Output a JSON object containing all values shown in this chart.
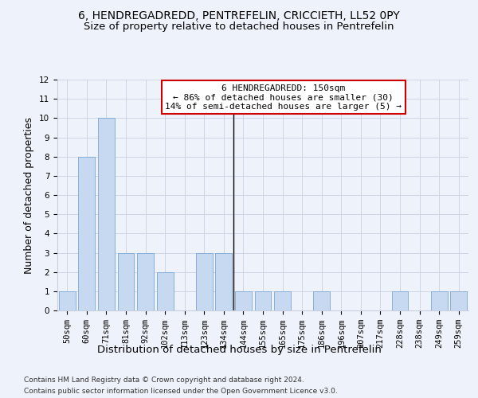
{
  "title": "6, HENDREGADREDD, PENTREFELIN, CRICCIETH, LL52 0PY",
  "subtitle": "Size of property relative to detached houses in Pentrefelin",
  "xlabel": "Distribution of detached houses by size in Pentrefelin",
  "ylabel": "Number of detached properties",
  "bar_labels": [
    "50sqm",
    "60sqm",
    "71sqm",
    "81sqm",
    "92sqm",
    "102sqm",
    "113sqm",
    "123sqm",
    "134sqm",
    "144sqm",
    "155sqm",
    "165sqm",
    "175sqm",
    "186sqm",
    "196sqm",
    "207sqm",
    "217sqm",
    "228sqm",
    "238sqm",
    "249sqm",
    "259sqm"
  ],
  "bar_values": [
    1,
    8,
    10,
    3,
    3,
    2,
    0,
    3,
    3,
    1,
    1,
    1,
    0,
    1,
    0,
    0,
    0,
    1,
    0,
    1,
    1
  ],
  "bar_color": "#c6d9f0",
  "bar_edge_color": "#7ba7d0",
  "annotation_text_line1": "6 HENDREGADREDD: 150sqm",
  "annotation_text_line2": "← 86% of detached houses are smaller (30)",
  "annotation_text_line3": "14% of semi-detached houses are larger (5) →",
  "annotation_box_color": "#cc0000",
  "subject_line_bar_index": 8,
  "ylim": [
    0,
    12
  ],
  "yticks": [
    0,
    1,
    2,
    3,
    4,
    5,
    6,
    7,
    8,
    9,
    10,
    11,
    12
  ],
  "footer_line1": "Contains HM Land Registry data © Crown copyright and database right 2024.",
  "footer_line2": "Contains public sector information licensed under the Open Government Licence v3.0.",
  "background_color": "#eef2fa",
  "grid_color": "#c8d0e0",
  "title_fontsize": 10,
  "subtitle_fontsize": 9.5,
  "axis_label_fontsize": 9,
  "tick_fontsize": 7.5,
  "annotation_fontsize": 8,
  "footer_fontsize": 6.5
}
